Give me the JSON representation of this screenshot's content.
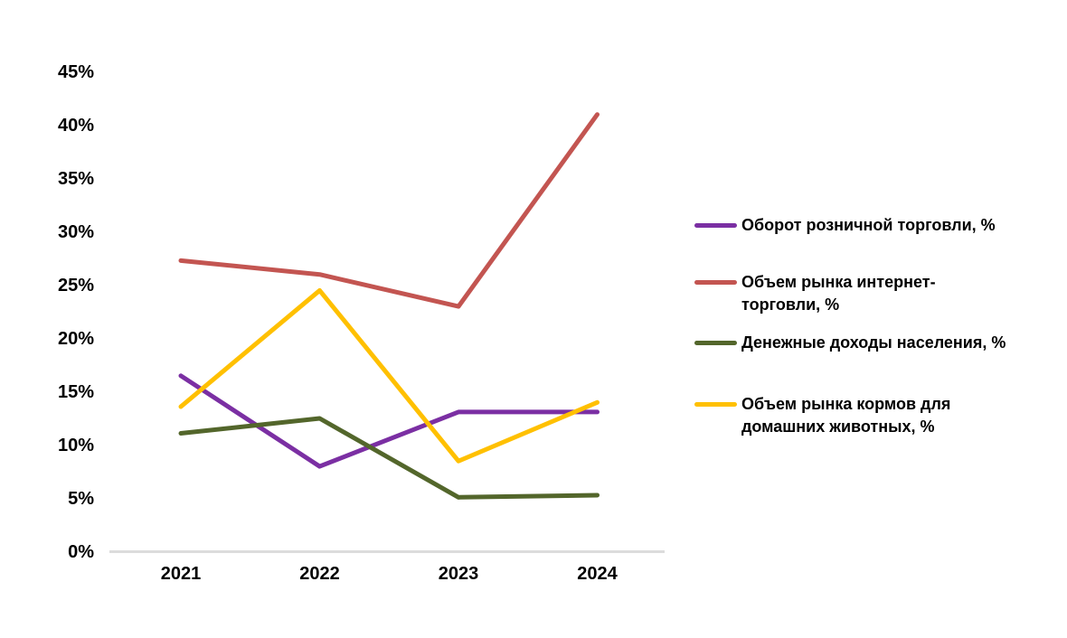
{
  "chart_data": {
    "type": "line",
    "categories": [
      "2021",
      "2022",
      "2023",
      "2024"
    ],
    "series": [
      {
        "name": "Оборот розничной торговли, %",
        "color": "#7B2FA3",
        "values": [
          16.5,
          8.0,
          13.1,
          13.1
        ]
      },
      {
        "name": "Объем рынка интернет-\nторговли, %",
        "color": "#C35551",
        "values": [
          27.3,
          26.0,
          23.0,
          41.0
        ]
      },
      {
        "name": "Денежные доходы населения, %",
        "color": "#53662B",
        "values": [
          11.1,
          12.5,
          5.1,
          5.3
        ]
      },
      {
        "name": "Объем рынка кормов для\nдомашних животных, %",
        "color": "#FFC000",
        "values": [
          13.6,
          24.5,
          8.5,
          14.0
        ]
      }
    ],
    "title": "",
    "xlabel": "",
    "ylabel": "",
    "ylim": [
      0,
      45
    ],
    "ytick_step": 5,
    "ytick_labels": [
      "0%",
      "5%",
      "10%",
      "15%",
      "20%",
      "25%",
      "30%",
      "35%",
      "40%",
      "45%"
    ],
    "grid": false,
    "legend_position": "right",
    "axis_line_color": "#DCDCDC",
    "text_color": "#000000",
    "background_color": "#FFFFFF"
  }
}
